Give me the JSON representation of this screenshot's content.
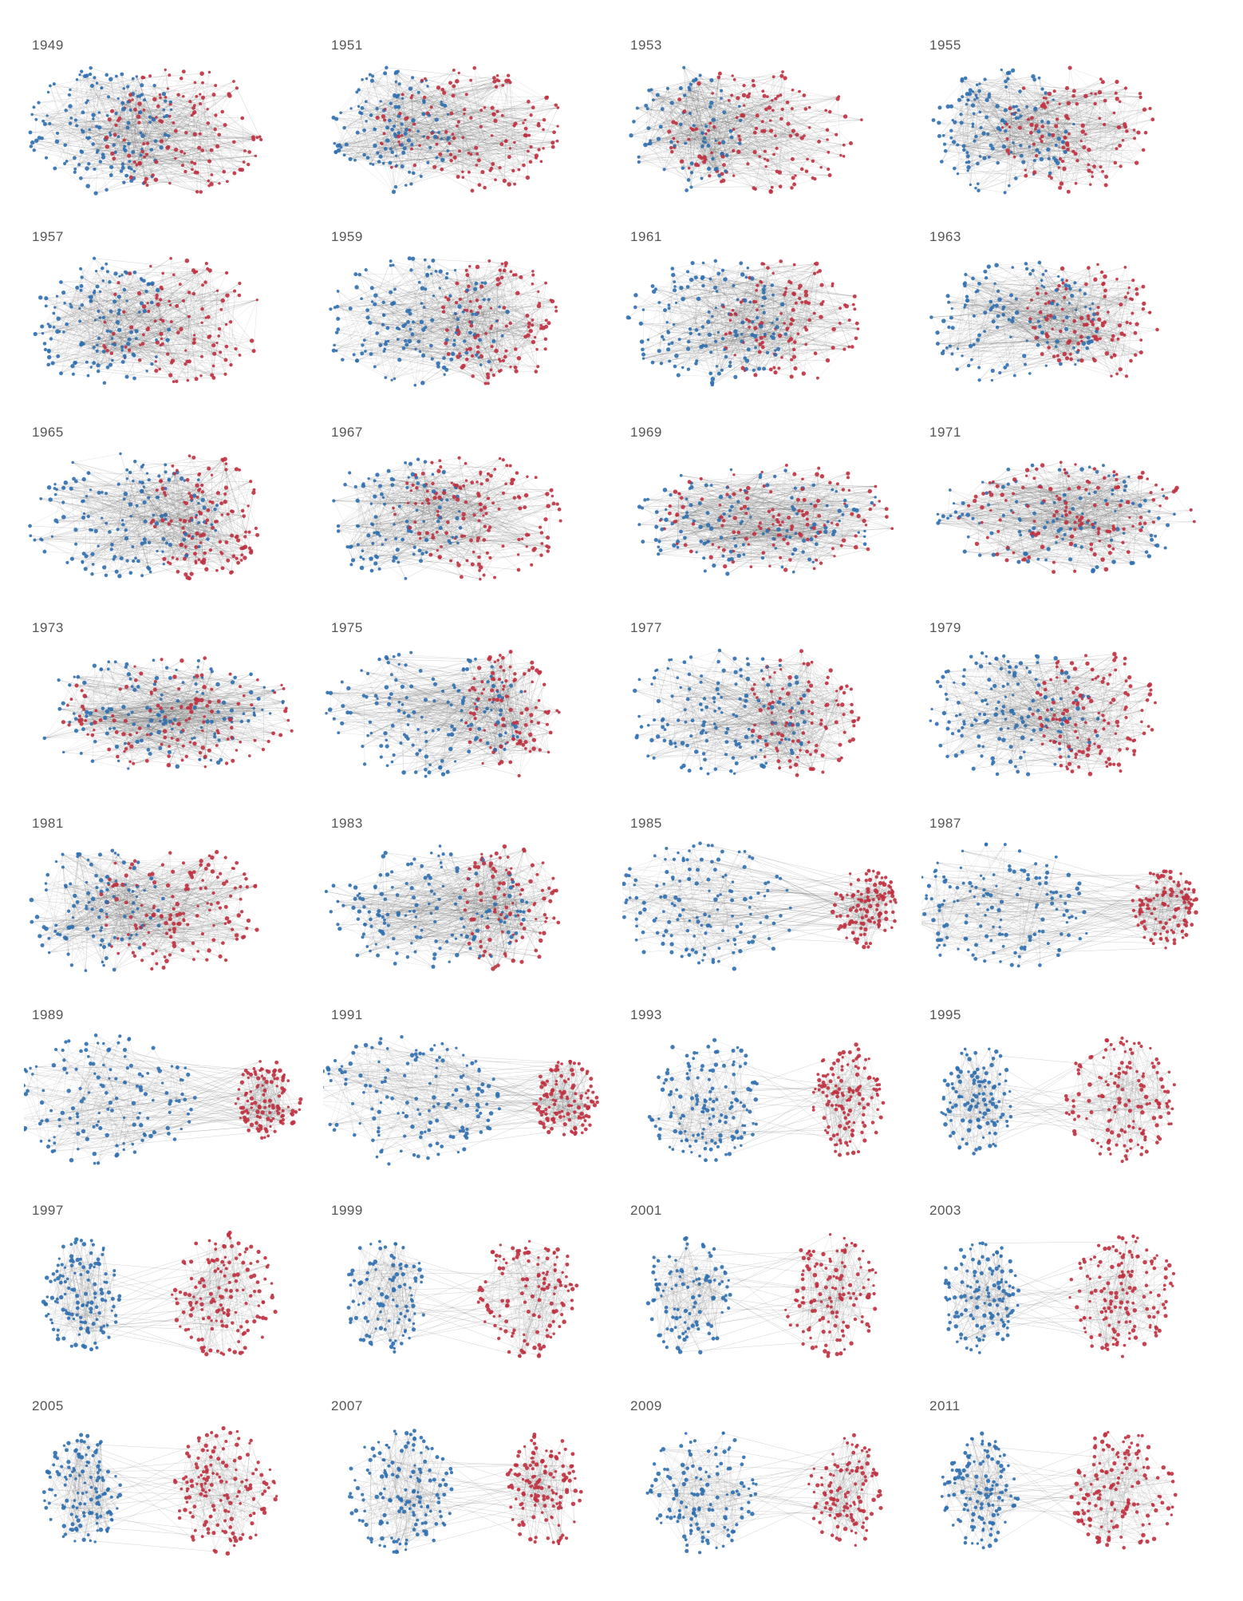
{
  "figure": {
    "colors": {
      "blue": "#2d6fb0",
      "red": "#c0303f",
      "edge": "#555555",
      "background": "#ffffff"
    },
    "panels": [
      {
        "year": "1949",
        "mode": "overlap",
        "blueFrac": 0.5,
        "blueDensity": 1.0,
        "redDensity": 0.9
      },
      {
        "year": "1951",
        "mode": "overlap",
        "blueFrac": 0.4,
        "blueDensity": 0.8,
        "redDensity": 1.0
      },
      {
        "year": "1953",
        "mode": "overlap",
        "blueFrac": 0.38,
        "blueDensity": 0.5,
        "redDensity": 1.0
      },
      {
        "year": "1955",
        "mode": "overlap",
        "blueFrac": 0.5,
        "blueDensity": 0.9,
        "redDensity": 0.8
      },
      {
        "year": "1957",
        "mode": "overlap",
        "blueFrac": 0.48,
        "blueDensity": 0.9,
        "redDensity": 0.8
      },
      {
        "year": "1959",
        "mode": "overlap",
        "blueFrac": 0.62,
        "blueDensity": 1.0,
        "redDensity": 0.8
      },
      {
        "year": "1961",
        "mode": "overlap",
        "blueFrac": 0.55,
        "blueDensity": 1.0,
        "redDensity": 0.8
      },
      {
        "year": "1963",
        "mode": "overlap",
        "blueFrac": 0.58,
        "blueDensity": 0.9,
        "redDensity": 0.8
      },
      {
        "year": "1965",
        "mode": "overlap",
        "blueFrac": 0.65,
        "blueDensity": 1.0,
        "redDensity": 0.9
      },
      {
        "year": "1967",
        "mode": "overlap",
        "blueFrac": 0.45,
        "blueDensity": 0.7,
        "redDensity": 1.0
      },
      {
        "year": "1969",
        "mode": "mixed",
        "blueFrac": 0.5,
        "blueDensity": 0.9,
        "redDensity": 0.9
      },
      {
        "year": "1971",
        "mode": "mixed",
        "blueFrac": 0.5,
        "blueDensity": 0.8,
        "redDensity": 0.9
      },
      {
        "year": "1973",
        "mode": "mixed",
        "blueFrac": 0.5,
        "blueDensity": 0.9,
        "redDensity": 0.9
      },
      {
        "year": "1975",
        "mode": "overlap",
        "blueFrac": 0.7,
        "blueDensity": 1.0,
        "redDensity": 0.7
      },
      {
        "year": "1977",
        "mode": "overlap",
        "blueFrac": 0.65,
        "blueDensity": 1.0,
        "redDensity": 0.7
      },
      {
        "year": "1979",
        "mode": "overlap",
        "blueFrac": 0.6,
        "blueDensity": 1.0,
        "redDensity": 0.9
      },
      {
        "year": "1981",
        "mode": "overlap",
        "blueFrac": 0.45,
        "blueDensity": 0.7,
        "redDensity": 1.0
      },
      {
        "year": "1983",
        "mode": "overlap",
        "blueFrac": 0.68,
        "blueDensity": 1.0,
        "redDensity": 0.7
      },
      {
        "year": "1985",
        "mode": "split",
        "blueFrac": 0.68,
        "blueDensity": 1.0,
        "redDensity": 0.8
      },
      {
        "year": "1987",
        "mode": "split",
        "blueFrac": 0.68,
        "blueDensity": 1.0,
        "redDensity": 0.8
      },
      {
        "year": "1989",
        "mode": "split",
        "blueFrac": 0.68,
        "blueDensity": 1.0,
        "redDensity": 0.8
      },
      {
        "year": "1991",
        "mode": "split",
        "blueFrac": 0.7,
        "blueDensity": 1.0,
        "redDensity": 0.8
      },
      {
        "year": "1993",
        "mode": "separate",
        "blueFrac": 0.62,
        "blueDensity": 1.0,
        "redDensity": 0.9
      },
      {
        "year": "1995",
        "mode": "separate",
        "blueFrac": 0.4,
        "blueDensity": 0.8,
        "redDensity": 1.0
      },
      {
        "year": "1997",
        "mode": "separate",
        "blueFrac": 0.42,
        "blueDensity": 0.9,
        "redDensity": 1.0
      },
      {
        "year": "1999",
        "mode": "separate",
        "blueFrac": 0.45,
        "blueDensity": 0.7,
        "redDensity": 0.9
      },
      {
        "year": "2001",
        "mode": "separate",
        "blueFrac": 0.48,
        "blueDensity": 0.7,
        "redDensity": 0.9
      },
      {
        "year": "2003",
        "mode": "separate",
        "blueFrac": 0.42,
        "blueDensity": 0.9,
        "redDensity": 1.0
      },
      {
        "year": "2005",
        "mode": "separate",
        "blueFrac": 0.42,
        "blueDensity": 0.9,
        "redDensity": 1.0
      },
      {
        "year": "2007",
        "mode": "separate",
        "blueFrac": 0.58,
        "blueDensity": 1.0,
        "redDensity": 0.9
      },
      {
        "year": "2009",
        "mode": "separate",
        "blueFrac": 0.6,
        "blueDensity": 0.9,
        "redDensity": 0.8
      },
      {
        "year": "2011",
        "mode": "separate",
        "blueFrac": 0.42,
        "blueDensity": 0.9,
        "redDensity": 1.0
      }
    ]
  }
}
